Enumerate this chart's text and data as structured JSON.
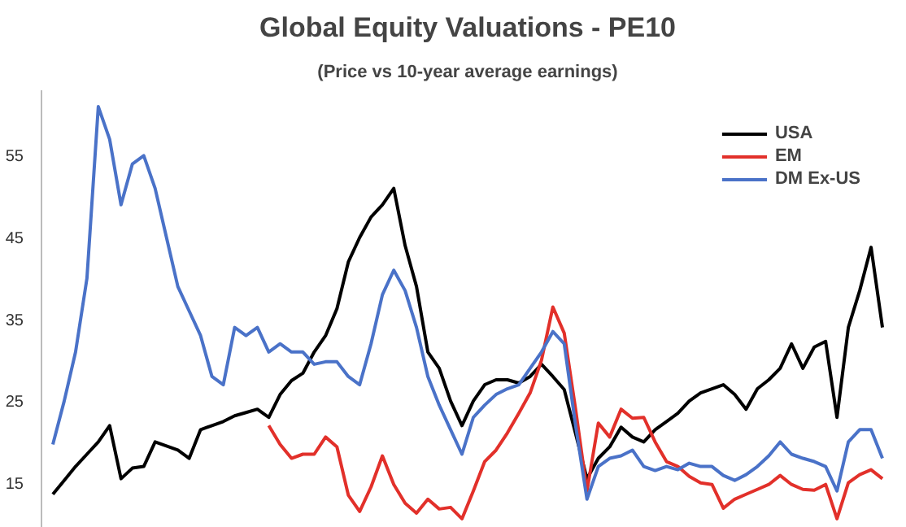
{
  "chart_data": {
    "type": "line",
    "title": "Global Equity Valuations - PE10",
    "subtitle": "(Price vs 10-year average earnings)",
    "categories": [
      null,
      null,
      null,
      null,
      null,
      null,
      null,
      null,
      null,
      null,
      null,
      null,
      null,
      null,
      null,
      null,
      null,
      null,
      null,
      null,
      null,
      null,
      null,
      null,
      null,
      null,
      null,
      null,
      null,
      null,
      null,
      null,
      null,
      null,
      null,
      null,
      null,
      null,
      null,
      null,
      null,
      null,
      null,
      null,
      null,
      null,
      null,
      null,
      null,
      null,
      null,
      null,
      null,
      null,
      null,
      null,
      null,
      null,
      null,
      null,
      null,
      null,
      null,
      null,
      null,
      null,
      null,
      null,
      null,
      null,
      null,
      null,
      null,
      null
    ],
    "series": [
      {
        "name": "USA",
        "color": "#000000",
        "values": [
          13.6,
          15.3,
          17,
          18.5,
          20,
          22,
          15.5,
          16.8,
          17,
          20,
          19.5,
          19,
          18,
          21.5,
          22,
          22.5,
          23.2,
          23.6,
          24,
          23,
          25.8,
          27.5,
          28.4,
          31,
          33,
          36.3,
          42,
          45,
          47.5,
          49,
          51,
          44,
          39,
          31,
          29,
          25,
          22,
          25,
          27,
          27.6,
          27.6,
          27.2,
          28,
          29.5,
          28,
          26.4,
          21,
          15.5,
          18,
          19.4,
          21.8,
          20.6,
          20,
          21.5,
          22.5,
          23.5,
          25,
          26,
          26.5,
          27,
          25.8,
          24,
          26.5,
          27.6,
          29,
          32,
          29,
          31.6,
          32.3,
          23,
          34,
          38.5,
          43.8,
          34
        ]
      },
      {
        "name": "EM",
        "color": "#e2302a",
        "values": [
          null,
          null,
          null,
          null,
          null,
          null,
          null,
          null,
          null,
          null,
          null,
          null,
          null,
          null,
          null,
          null,
          null,
          null,
          null,
          22,
          19.7,
          18,
          18.5,
          18.5,
          20.6,
          19.4,
          13.5,
          11.5,
          14.5,
          18.3,
          14.8,
          12.5,
          11.3,
          13,
          11.8,
          12,
          10.6,
          14,
          17.6,
          19,
          21.1,
          23.5,
          26,
          30,
          36.5,
          33.3,
          24,
          14,
          22.3,
          20.6,
          24,
          22.9,
          23,
          20,
          17.6,
          17,
          15.8,
          15,
          14.8,
          11.9,
          13,
          13.6,
          14.2,
          14.8,
          15.9,
          14.8,
          14.2,
          14.1,
          14.8,
          10.6,
          15,
          16,
          16.6,
          15.5
        ]
      },
      {
        "name": "DM Ex-US",
        "color": "#4a72c8",
        "values": [
          19.7,
          25,
          31,
          40,
          61,
          57,
          49,
          54,
          55,
          51,
          45,
          39,
          36,
          33,
          28,
          27,
          34,
          33,
          34,
          31,
          32,
          31,
          31,
          29.5,
          29.8,
          29.8,
          28,
          27,
          32,
          38,
          41,
          38.5,
          34,
          28,
          24.5,
          21.5,
          18.5,
          23,
          24.5,
          25.8,
          26.5,
          27,
          29,
          31,
          33.5,
          32,
          22,
          13,
          17,
          18,
          18.3,
          19,
          17,
          16.5,
          17,
          16.6,
          17.4,
          17,
          17,
          15.9,
          15.3,
          16,
          17,
          18.3,
          20,
          18.5,
          18,
          17.6,
          17,
          14,
          20,
          21.5,
          21.5,
          18
        ]
      }
    ],
    "ylim": [
      9.5,
      63
    ],
    "yticks": [
      15,
      25,
      35,
      45,
      55
    ],
    "tick_labels": "y",
    "grid": false,
    "legend": "top right",
    "marker": "none",
    "line_style": "solid"
  }
}
